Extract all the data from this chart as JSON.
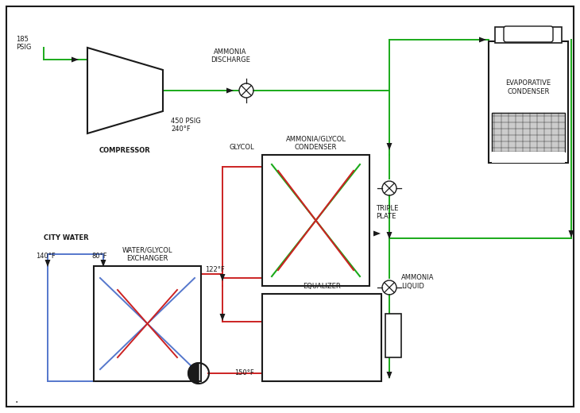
{
  "bg": "#ffffff",
  "black": "#1a1a1a",
  "green": "#1aaa1a",
  "red": "#cc2222",
  "blue": "#5577cc",
  "gray_mesh": "#cccccc",
  "lw": 1.4,
  "fs": 6.0,
  "labels": {
    "compressor": "COMPRESSOR",
    "ammonia_discharge": "AMMONIA\nDISCHARGE",
    "ammonia_glycol_condenser": "AMMONIA/GLYCOL\nCONDENSER",
    "triple_plate": "TRIPLE\nPLATE",
    "equalizer": "EQUALIZER",
    "water_glycol_exchanger": "WATER/GLYCOL\nEXCHANGER",
    "city_water": "CITY WATER",
    "evaporative_condenser": "EVAPORATIVE\nCONDENSER",
    "ammonia_liquid": "AMMONIA\nLIQUID",
    "glycol": "GLYCOL",
    "psig_185": "185\nPSIG",
    "psig_450": "450 PSIG\n240°F",
    "temp_140": "140°F",
    "temp_80": "80°F",
    "temp_122": "122°F",
    "temp_150": "150°F"
  }
}
